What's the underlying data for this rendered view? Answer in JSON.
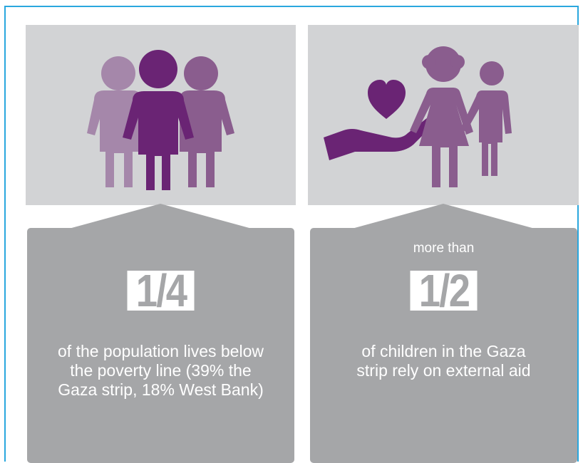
{
  "colors": {
    "frame_border": "#2aa7de",
    "card_top_bg": "#d2d3d5",
    "card_bottom_bg": "#a5a6a8",
    "purple_dark": "#6a2474",
    "purple_mid": "#8a5d8e",
    "purple_light": "#a587aa"
  },
  "stats": [
    {
      "icon": "group-of-people-icon",
      "prefix": "",
      "fraction": "1/4",
      "lines": [
        "of the population lives below",
        "the poverty line (39% the",
        "Gaza strip, 18% West Bank)"
      ]
    },
    {
      "icon": "hand-giving-heart-to-family-icon",
      "prefix": "more than",
      "fraction": "1/2",
      "lines": [
        "of children in the Gaza",
        "strip rely on external aid"
      ]
    }
  ]
}
